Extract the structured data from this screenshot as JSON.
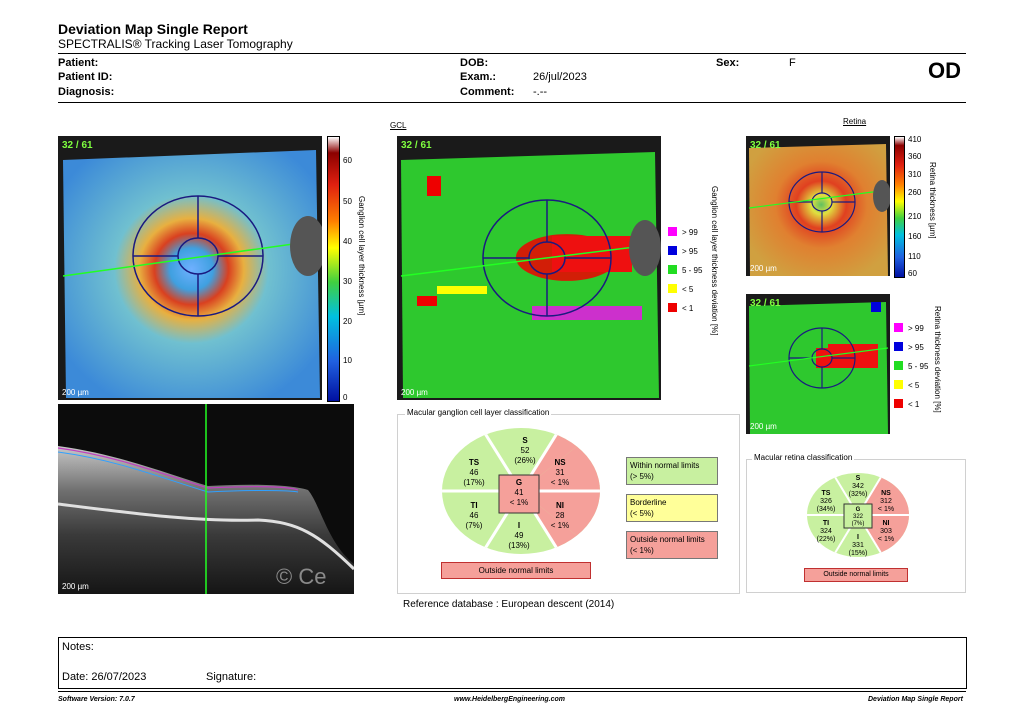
{
  "header": {
    "title": "Deviation Map Single Report",
    "subtitle": "SPECTRALIS® Tracking Laser Tomography"
  },
  "patient": {
    "patient_label": "Patient:",
    "patient_id_label": "Patient ID:",
    "diagnosis_label": "Diagnosis:",
    "dob_label": "DOB:",
    "exam_label": "Exam.:",
    "exam_value": "26/jul/2023",
    "comment_label": "Comment:",
    "comment_value": "-.--",
    "sex_label": "Sex:",
    "sex_value": "F",
    "eye": "OD"
  },
  "gcl_thickness_map": {
    "count": "32 / 61",
    "scale": "200 µm",
    "colorbar_label": "Ganglion cell layer thickness [µm]",
    "ticks": [
      "60",
      "50",
      "40",
      "30",
      "20",
      "10",
      "0"
    ]
  },
  "gcl_deviation_map": {
    "title": "GCL",
    "count": "32 / 61",
    "scale": "200 µm",
    "colorbar_label": "Ganglion cell layer thickness deviation [%]",
    "legend": [
      {
        "label": "> 99",
        "color": "#ff00ff"
      },
      {
        "label": "> 95",
        "color": "#0000dd"
      },
      {
        "label": "5 - 95",
        "color": "#22dd22"
      },
      {
        "label": "< 5",
        "color": "#ffff00"
      },
      {
        "label": "< 1",
        "color": "#ee0000"
      }
    ]
  },
  "oct_scan": {
    "scale": "200 µm",
    "watermark": "© Ce"
  },
  "retina_thickness_map": {
    "title": "Retina",
    "count": "32 / 61",
    "scale": "200 µm",
    "colorbar_label": "Retina thickness [µm]",
    "ticks": [
      "410",
      "360",
      "310",
      "260",
      "210",
      "160",
      "110",
      "60"
    ]
  },
  "retina_deviation_map": {
    "count": "32 / 61",
    "scale": "200 µm",
    "colorbar_label": "Retina thickness deviation [%]",
    "legend": [
      {
        "label": "> 99",
        "color": "#ff00ff"
      },
      {
        "label": "> 95",
        "color": "#0000dd"
      },
      {
        "label": "5 - 95",
        "color": "#22dd22"
      },
      {
        "label": "< 5",
        "color": "#ffff00"
      },
      {
        "label": "< 1",
        "color": "#ee0000"
      }
    ]
  },
  "gcl_classification": {
    "title": "Macular ganglion cell layer classification",
    "sectors": {
      "S": {
        "name": "S",
        "value": "52",
        "pct": "(26%)"
      },
      "TS": {
        "name": "TS",
        "value": "46",
        "pct": "(17%)"
      },
      "NS": {
        "name": "NS",
        "value": "31",
        "pct": "< 1%"
      },
      "G": {
        "name": "G",
        "value": "41",
        "pct": "< 1%"
      },
      "TI": {
        "name": "TI",
        "value": "46",
        "pct": "(7%)"
      },
      "NI": {
        "name": "NI",
        "value": "28",
        "pct": "< 1%"
      },
      "I": {
        "name": "I",
        "value": "49",
        "pct": "(13%)"
      }
    },
    "result": "Outside normal limits",
    "legend": [
      {
        "line1": "Within normal limits",
        "line2": "(> 5%)",
        "color": "#c8f0a0"
      },
      {
        "line1": "Borderline",
        "line2": "(< 5%)",
        "color": "#ffff99"
      },
      {
        "line1": "Outside normal limits",
        "line2": "(< 1%)",
        "color": "#f5a09a"
      }
    ],
    "reference": "Reference database : European descent (2014)"
  },
  "retina_classification": {
    "title": "Macular retina classification",
    "sectors": {
      "S": {
        "name": "S",
        "value": "342",
        "pct": "(32%)"
      },
      "TS": {
        "name": "TS",
        "value": "326",
        "pct": "(34%)"
      },
      "NS": {
        "name": "NS",
        "value": "312",
        "pct": "< 1%"
      },
      "G": {
        "name": "G",
        "value": "322",
        "pct": "(7%)"
      },
      "TI": {
        "name": "TI",
        "value": "324",
        "pct": "(22%)"
      },
      "NI": {
        "name": "NI",
        "value": "303",
        "pct": "< 1%"
      },
      "I": {
        "name": "I",
        "value": "331",
        "pct": "(15%)"
      }
    },
    "result": "Outside normal limits"
  },
  "notes": {
    "notes_label": "Notes:",
    "date_label": "Date: 26/07/2023",
    "signature_label": "Signature:"
  },
  "footer": {
    "software": "Software Version: 7.0.7",
    "website": "www.HeidelbergEngineering.com",
    "report": "Deviation Map Single Report"
  }
}
